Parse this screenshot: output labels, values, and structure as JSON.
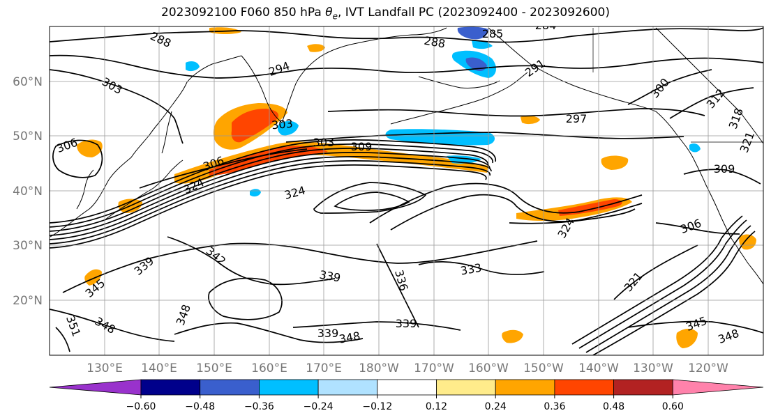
{
  "title_prefix": "2023092100 F060 850 hPa ",
  "title_symbol": "θ",
  "title_subscript": "e",
  "title_suffix": ", IVT Landfall PC (2023092400 - 2023092600)",
  "map": {
    "projection": "PlateCarree",
    "lon_range": [
      120,
      250
    ],
    "lat_range": [
      10,
      70
    ],
    "lat_labels": [
      "60°N",
      "50°N",
      "40°N",
      "30°N",
      "20°N"
    ],
    "lon_labels": [
      "130°E",
      "140°E",
      "150°E",
      "160°E",
      "170°E",
      "180°W",
      "170°W",
      "160°W",
      "150°W",
      "140°W",
      "130°W",
      "120°W"
    ],
    "gridlines": true,
    "coastlines": true
  },
  "contour_labels": [
    "288",
    "285",
    "284",
    "288",
    "294",
    "291",
    "303",
    "300",
    "312",
    "318",
    "303",
    "297",
    "321",
    "306",
    "303",
    "309",
    "306",
    "309",
    "324",
    "324",
    "324",
    "306",
    "342",
    "339",
    "333",
    "339",
    "336",
    "339",
    "321",
    "345",
    "348",
    "339",
    "348",
    "348",
    "351",
    "345",
    "348"
  ],
  "colorbar": {
    "colors": [
      "#9932CC",
      "#00008B",
      "#3A5FCD",
      "#00BFFF",
      "#B0E2FF",
      "#FFFFFF",
      "#FFEC8B",
      "#FFA500",
      "#FF4500",
      "#B22222",
      "#FF82AB"
    ],
    "ticks": [
      "−0.60",
      "−0.48",
      "−0.36",
      "−0.24",
      "−0.12",
      "0.12",
      "0.24",
      "0.36",
      "0.48",
      "0.60"
    ],
    "extend": "both"
  },
  "colors": {
    "positive_fill": "#FFA500",
    "strong_positive_fill": "#FF4500",
    "negative_fill": "#00BFFF",
    "contour_line": "#000000",
    "gridline": "#999999"
  }
}
